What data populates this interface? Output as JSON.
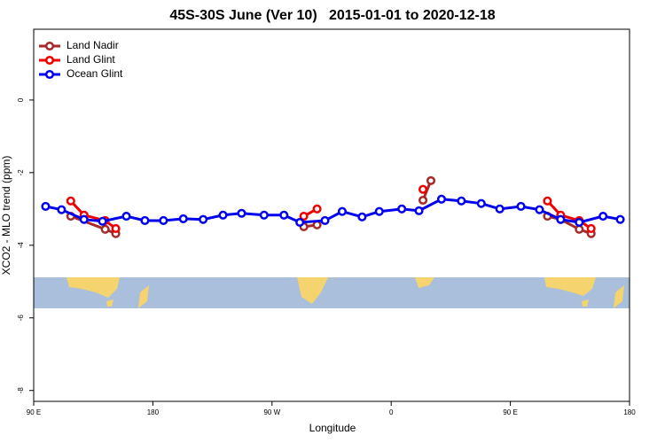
{
  "chart_data": {
    "type": "line",
    "title": "45S-30S June (Ver 10)   2015-01-01 to 2020-12-18",
    "x_label": "Longitude",
    "y_label": "XCO2 - MLO trend (ppm)",
    "xlim": [
      90,
      540
    ],
    "ylim": [
      -8.3,
      1.95
    ],
    "xticks": [
      {
        "value": 90,
        "label": "90 E"
      },
      {
        "value": 180,
        "label": "180"
      },
      {
        "value": 270,
        "label": "90 W"
      },
      {
        "value": 360,
        "label": "0"
      },
      {
        "value": 450,
        "label": "90 E"
      },
      {
        "value": 540,
        "label": "180"
      }
    ],
    "yticks": [
      -8,
      -6,
      -4,
      -2,
      0
    ],
    "legend": "top-left",
    "series": [
      {
        "name": "Land Nadir",
        "color": "#a52a2a",
        "x": [
          118,
          144,
          152,
          null,
          294,
          304,
          null,
          384,
          390,
          null,
          478,
          488,
          502,
          511
        ],
        "values": [
          -3.2,
          -3.56,
          -3.68,
          null,
          -3.49,
          -3.44,
          null,
          -2.76,
          -2.22,
          null,
          -3.2,
          -3.29,
          -3.56,
          -3.68
        ]
      },
      {
        "name": "Land Glint",
        "color": "#ee0000",
        "x": [
          118,
          128,
          144,
          152,
          null,
          294,
          304,
          null,
          384,
          null,
          478,
          488,
          502,
          511
        ],
        "values": [
          -2.78,
          -3.17,
          -3.32,
          -3.54,
          null,
          -3.2,
          -3.0,
          null,
          -2.46,
          null,
          -2.78,
          -3.17,
          -3.32,
          -3.54
        ]
      },
      {
        "name": "Ocean Glint",
        "color": "#0000ee",
        "x": [
          99,
          111,
          128,
          142,
          160,
          174,
          188,
          203,
          218,
          233,
          247,
          264,
          279,
          291,
          310,
          323,
          338,
          351,
          368,
          381,
          398,
          413,
          428,
          442,
          458,
          472,
          488,
          502,
          520,
          533
        ],
        "values": [
          -2.93,
          -3.02,
          -3.29,
          -3.34,
          -3.2,
          -3.32,
          -3.32,
          -3.27,
          -3.29,
          -3.17,
          -3.12,
          -3.17,
          -3.17,
          -3.37,
          -3.32,
          -3.07,
          -3.22,
          -3.07,
          -3.0,
          -3.05,
          -2.73,
          -2.78,
          -2.85,
          -3.0,
          -2.93,
          -3.02,
          -3.29,
          -3.37,
          -3.2,
          -3.29
        ]
      }
    ]
  }
}
